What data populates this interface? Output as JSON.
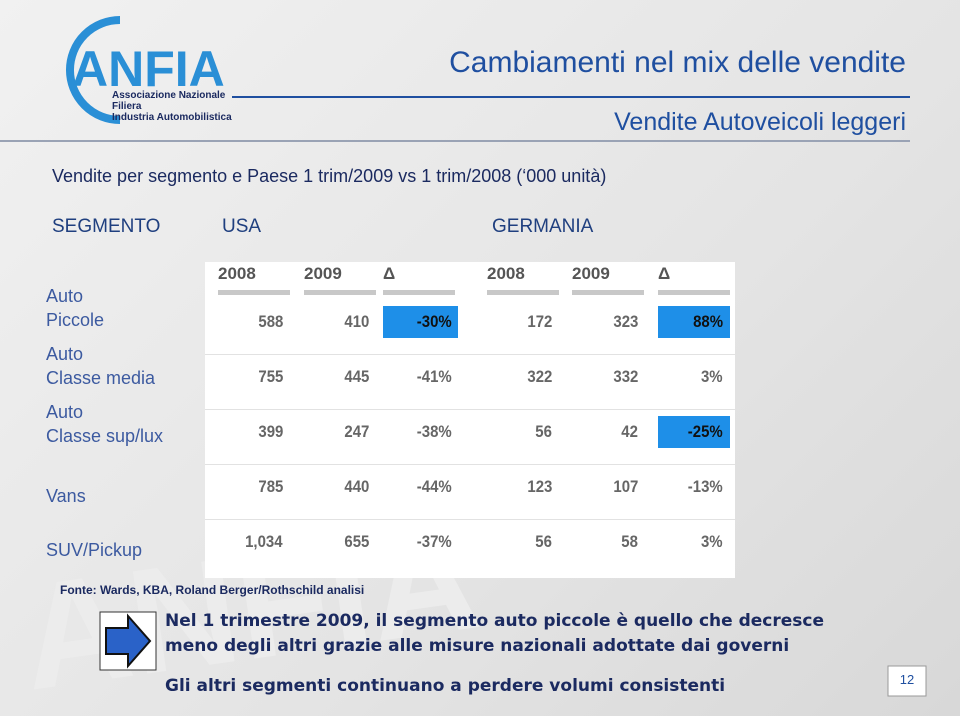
{
  "logo": {
    "name": "ANFIA",
    "lines": [
      "Associazione Nazionale",
      "Filiera",
      "Industria Automobilistica"
    ]
  },
  "title": "Cambiamenti nel mix delle vendite",
  "subtitle": "Vendite Autoveicoli leggeri",
  "heading": "Vendite per segmento e Paese 1  trim/2009 vs 1  trim/2008 (‘000 unità)",
  "column_groups": [
    "SEGMENTO",
    "USA",
    "GERMANIA"
  ],
  "table": {
    "header": [
      "2008",
      "2009",
      "Δ",
      "2008",
      "2009",
      "Δ"
    ],
    "rows": [
      {
        "label": [
          "Auto",
          "Piccole"
        ],
        "cells": [
          "588",
          "410",
          "-30%",
          "172",
          "323",
          "88%"
        ],
        "highlight": [
          2,
          5
        ]
      },
      {
        "label": [
          "Auto",
          "Classe media"
        ],
        "cells": [
          "755",
          "445",
          "-41%",
          "322",
          "332",
          "3%"
        ],
        "highlight": []
      },
      {
        "label": [
          "Auto",
          "Classe sup/lux"
        ],
        "cells": [
          "399",
          "247",
          "-38%",
          "56",
          "42",
          "-25%"
        ],
        "highlight": [
          5
        ]
      },
      {
        "label": [
          "Vans"
        ],
        "cells": [
          "785",
          "440",
          "-44%",
          "123",
          "107",
          "-13%"
        ],
        "highlight": []
      },
      {
        "label": [
          "SUV/Pickup"
        ],
        "cells": [
          "1,034",
          "655",
          "-37%",
          "56",
          "58",
          "3%"
        ],
        "highlight": []
      }
    ]
  },
  "source": "Fonte: Wards, KBA, Roland Berger/Rothschild analisi",
  "notes": [
    "Nel 1  trimestre 2009, il segmento auto piccole è quello che decresce",
    "meno degli altri grazie alle misure nazionali adottate dai governi",
    "Gli altri segmenti  continuano a perdere volumi consistenti"
  ],
  "page_number": "12"
}
